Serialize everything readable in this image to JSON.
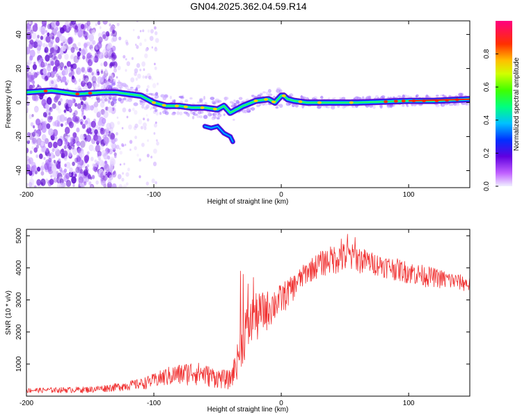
{
  "title": "GN04.2025.362.04.59.R14",
  "chart_data": [
    {
      "type": "heatmap",
      "name": "spectrogram",
      "xlabel": "Height of straight line (km)",
      "ylabel": "Frequency (Hz)",
      "xlim": [
        -200,
        148
      ],
      "ylim": [
        -50,
        48
      ],
      "xticks": [
        -200,
        -100,
        0,
        100
      ],
      "yticks": [
        -40,
        -20,
        0,
        20,
        40
      ],
      "colorbar": {
        "label": "Normalized spectral amplitude",
        "range": [
          0,
          1
        ],
        "ticks": [
          0.0,
          0.2,
          0.4,
          0.6,
          0.8
        ]
      },
      "ridge": {
        "x": [
          -200,
          -180,
          -160,
          -140,
          -130,
          -120,
          -110,
          -100,
          -90,
          -80,
          -70,
          -60,
          -50,
          -45,
          -40,
          -35,
          -30,
          -20,
          -10,
          -5,
          0,
          2,
          5,
          10,
          20,
          40,
          60,
          80,
          100,
          120,
          148
        ],
        "y": [
          6,
          7,
          5,
          6,
          6,
          5,
          4,
          0,
          -2,
          -2,
          -3,
          -3,
          -4,
          -2,
          -6,
          -4,
          -2,
          1,
          2,
          0,
          4,
          4,
          2,
          1,
          0,
          0,
          0,
          0.5,
          1,
          1,
          2
        ]
      },
      "branch": {
        "x": [
          -60,
          -55,
          -50,
          -45,
          -40,
          -38
        ],
        "y": [
          -14,
          -15,
          -14,
          -18,
          -20,
          -23
        ]
      }
    },
    {
      "type": "line",
      "name": "snr",
      "xlabel": "Height of straight line (km)",
      "ylabel": "SNR (10 * v/v)",
      "xlim": [
        -200,
        148
      ],
      "ylim": [
        0,
        5200
      ],
      "xticks": [
        -200,
        -100,
        0,
        100
      ],
      "yticks": [
        1000,
        2000,
        3000,
        4000,
        5000
      ],
      "color": "#f03030",
      "envelope": {
        "x": [
          -200,
          -150,
          -130,
          -110,
          -100,
          -90,
          -80,
          -70,
          -60,
          -50,
          -40,
          -35,
          -30,
          -25,
          -20,
          -10,
          0,
          10,
          20,
          30,
          40,
          50,
          60,
          70,
          80,
          90,
          100,
          110,
          120,
          130,
          140,
          148
        ],
        "lo": [
          100,
          100,
          150,
          200,
          250,
          300,
          300,
          350,
          300,
          250,
          200,
          500,
          1000,
          1300,
          1600,
          2100,
          2500,
          3000,
          3500,
          3700,
          3800,
          3800,
          3800,
          3800,
          3700,
          3600,
          3500,
          3400,
          3400,
          3300,
          3300,
          3200
        ],
        "hi": [
          250,
          300,
          400,
          550,
          700,
          900,
          1000,
          1100,
          1000,
          850,
          800,
          1500,
          2600,
          3000,
          3200,
          3300,
          3500,
          3800,
          4200,
          4500,
          4700,
          4800,
          4700,
          4500,
          4400,
          4300,
          4200,
          4100,
          4000,
          3900,
          3800,
          3700
        ]
      },
      "spikes": {
        "x": [
          -32,
          -30,
          -28,
          -26,
          -22,
          52,
          58,
          47
        ],
        "y": [
          3900,
          3800,
          2600,
          3500,
          3700,
          5050,
          4950,
          4900
        ]
      }
    }
  ]
}
